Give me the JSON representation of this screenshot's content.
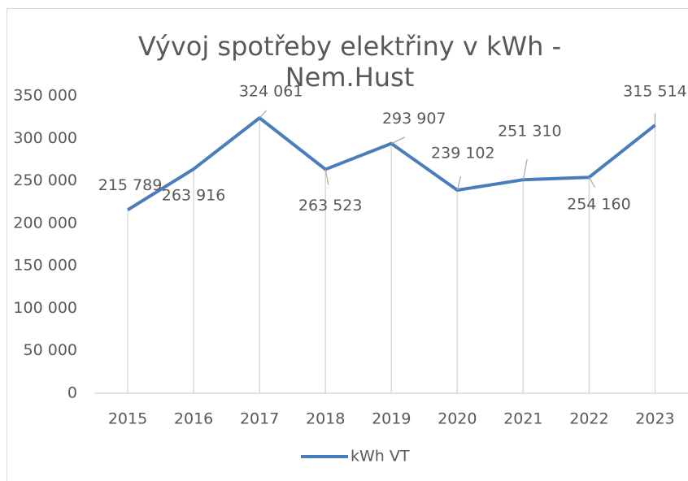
{
  "chart_data": {
    "type": "line",
    "title": "Vývoj spotřeby elektřiny v kWh - Nem.Hust",
    "categories": [
      "2015",
      "2016",
      "2017",
      "2018",
      "2019",
      "2020",
      "2021",
      "2022",
      "2023"
    ],
    "series": [
      {
        "name": "kWh VT",
        "color": "#4a7ebb",
        "values": [
          215789,
          263916,
          324061,
          263523,
          293907,
          239102,
          251310,
          254160,
          315514
        ],
        "value_labels": [
          "215 789",
          "263 916",
          "324 061",
          "263 523",
          "293 907",
          "239 102",
          "251 310",
          "254 160",
          "315 514"
        ]
      }
    ],
    "ylim": [
      0,
      350000
    ],
    "yticks": [
      0,
      {
        "value": 50000,
        "label": "50 000"
      },
      {
        "value": 100000,
        "label": "100 000"
      },
      {
        "value": 150000,
        "label": "150 000"
      },
      {
        "value": 200000,
        "label": "200 000"
      },
      {
        "value": 250000,
        "label": "250 000"
      },
      {
        "value": 300000,
        "label": "300 000"
      },
      {
        "value": 350000,
        "label": "350 000"
      }
    ],
    "legend": "bottom"
  }
}
